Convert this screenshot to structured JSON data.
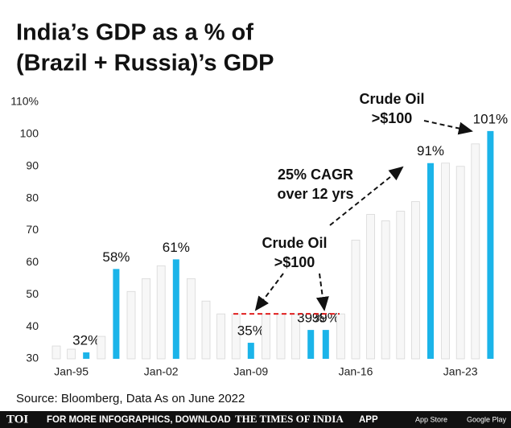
{
  "chart_data": {
    "type": "bar",
    "title": [
      "India’s GDP as a % of",
      "(Brazil + Russia)’s GDP"
    ],
    "categories": [
      null,
      "Jan-95",
      null,
      null,
      null,
      null,
      null,
      "Jan-02",
      null,
      null,
      null,
      null,
      null,
      "Jan-09",
      null,
      null,
      null,
      null,
      null,
      null,
      "Jan-16",
      null,
      null,
      null,
      null,
      null,
      null,
      "Jan-23",
      null,
      null
    ],
    "values": [
      34,
      33,
      32,
      37,
      58,
      51,
      55,
      59,
      61,
      55,
      48,
      44,
      44,
      35,
      44,
      44,
      44,
      39,
      39,
      44,
      67,
      75,
      73,
      76,
      79,
      91,
      91,
      90,
      97,
      101
    ],
    "value_labels": [
      null,
      null,
      "32%",
      null,
      "58%",
      null,
      null,
      null,
      "61%",
      null,
      null,
      null,
      null,
      "35%",
      null,
      null,
      null,
      "39%",
      "39%",
      null,
      null,
      null,
      null,
      null,
      null,
      "91%",
      null,
      null,
      null,
      "101%"
    ],
    "colors": [
      "#f7f7f7",
      "#f7f7f7",
      "#1bb4e9",
      "#f7f7f7",
      "#1bb4e9",
      "#f7f7f7",
      "#f7f7f7",
      "#f7f7f7",
      "#1bb4e9",
      "#f7f7f7",
      "#f7f7f7",
      "#f7f7f7",
      "#f7f7f7",
      "#1bb4e9",
      "#f7f7f7",
      "#f7f7f7",
      "#f7f7f7",
      "#1bb4e9",
      "#1bb4e9",
      "#f7f7f7",
      "#f7f7f7",
      "#f7f7f7",
      "#f7f7f7",
      "#f7f7f7",
      "#f7f7f7",
      "#1bb4e9",
      "#f7f7f7",
      "#f7f7f7",
      "#f7f7f7",
      "#1bb4e9"
    ],
    "ylim": [
      30,
      110
    ],
    "yticks": [
      30,
      40,
      50,
      60,
      70,
      80,
      90,
      100,
      {
        "value": 110,
        "label": "110%"
      }
    ],
    "reference_line": 44,
    "annotations": [
      [
        "Crude Oil",
        ">$100"
      ],
      [
        "25% CAGR",
        "over 12 yrs"
      ],
      [
        "Crude Oil",
        ">$100"
      ]
    ],
    "source": "Source: Bloomberg, Data As on June 2022"
  },
  "footer": {
    "brand": "TOI",
    "text": "FOR MORE INFOGRAPHICS, DOWNLOAD",
    "paper": "THE TIMES OF INDIA",
    "app": "APP",
    "store1": "App Store",
    "store2": "Google Play"
  }
}
